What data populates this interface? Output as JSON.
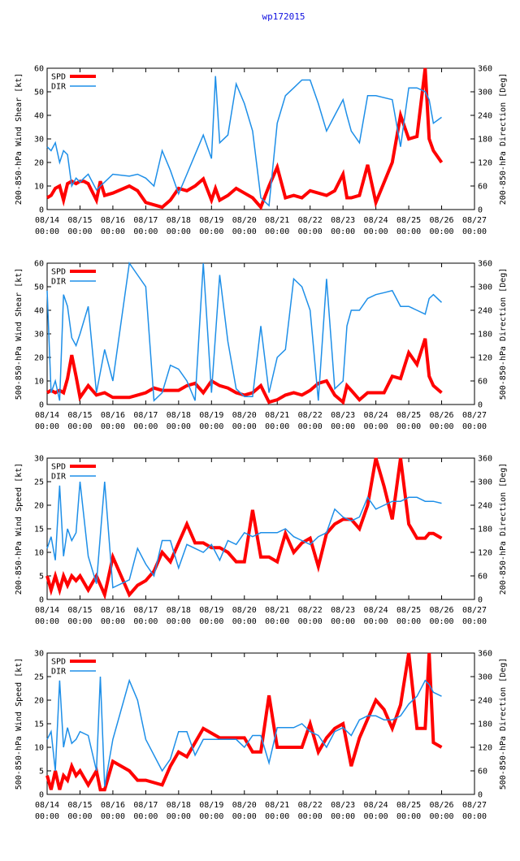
{
  "page_title": "wp172015",
  "x_ticks": [
    [
      "08/14",
      "00:00"
    ],
    [
      "08/15",
      "00:00"
    ],
    [
      "08/16",
      "00:00"
    ],
    [
      "08/17",
      "00:00"
    ],
    [
      "08/18",
      "00:00"
    ],
    [
      "08/19",
      "00:00"
    ],
    [
      "08/20",
      "00:00"
    ],
    [
      "08/21",
      "00:00"
    ],
    [
      "08/22",
      "00:00"
    ],
    [
      "08/23",
      "00:00"
    ],
    [
      "08/24",
      "00:00"
    ],
    [
      "08/25",
      "00:00"
    ],
    [
      "08/26",
      "00:00"
    ],
    [
      "08/27",
      "00:00"
    ]
  ],
  "legend": {
    "spd": "SPD",
    "dir": "DIR"
  },
  "colors": {
    "spd": "#ff0000",
    "dir": "#1e8fe8",
    "axis": "#000000",
    "title": "#1010e0"
  },
  "chart_data": [
    {
      "type": "line",
      "title": "",
      "xlabel": "",
      "ylabel": "200-850-hPa Wind Shear [kt]",
      "y2label": "200-850-hPa Direction [Deg]",
      "xlim": [
        0,
        13
      ],
      "ylim": [
        0,
        60
      ],
      "y2lim": [
        0,
        360
      ],
      "yticks": [
        0,
        10,
        20,
        30,
        40,
        50,
        60
      ],
      "y2ticks": [
        0,
        60,
        120,
        180,
        240,
        300,
        360
      ],
      "series": [
        {
          "name": "SPD",
          "axis": "left",
          "x": [
            0,
            0.12,
            0.25,
            0.38,
            0.5,
            0.62,
            0.75,
            0.88,
            1.0,
            1.12,
            1.25,
            1.5,
            1.62,
            1.75,
            2.0,
            2.5,
            2.75,
            3.0,
            3.25,
            3.5,
            3.75,
            4.0,
            4.25,
            4.5,
            4.75,
            5.0,
            5.12,
            5.25,
            5.5,
            5.75,
            6.0,
            6.25,
            6.5,
            6.75,
            7.0,
            7.25,
            7.5,
            7.75,
            8.0,
            8.25,
            8.5,
            8.75,
            9.0,
            9.12,
            9.25,
            9.5,
            9.75,
            10.0,
            10.5,
            10.75,
            11.0,
            11.25,
            11.5,
            11.62,
            11.75,
            12.0
          ],
          "values": [
            5,
            6,
            9,
            10,
            4,
            11,
            12,
            11,
            12,
            12,
            11,
            4,
            12,
            6,
            7,
            10,
            8,
            3,
            2,
            1,
            4,
            9,
            8,
            10,
            13,
            4,
            9,
            4,
            6,
            9,
            7,
            5,
            1,
            10,
            18,
            5,
            6,
            5,
            8,
            7,
            6,
            8,
            15,
            5,
            5,
            6,
            19,
            3,
            20,
            40,
            30,
            31,
            60,
            30,
            25,
            20
          ]
        },
        {
          "name": "DIR",
          "axis": "right",
          "x": [
            0,
            0.12,
            0.25,
            0.38,
            0.5,
            0.62,
            0.75,
            0.88,
            1.0,
            1.12,
            1.25,
            1.5,
            1.62,
            1.75,
            2.0,
            2.5,
            2.75,
            3.0,
            3.25,
            3.5,
            3.75,
            4.0,
            4.25,
            4.5,
            4.75,
            5.0,
            5.12,
            5.25,
            5.5,
            5.75,
            6.0,
            6.25,
            6.5,
            6.75,
            7.0,
            7.25,
            7.5,
            7.75,
            8.0,
            8.25,
            8.5,
            8.75,
            9.0,
            9.12,
            9.25,
            9.5,
            9.75,
            10.0,
            10.5,
            10.75,
            11.0,
            11.25,
            11.5,
            11.62,
            11.75,
            12.0
          ],
          "values": [
            160,
            150,
            170,
            120,
            150,
            140,
            60,
            80,
            70,
            80,
            90,
            50,
            60,
            70,
            90,
            85,
            90,
            80,
            60,
            150,
            100,
            40,
            90,
            140,
            190,
            130,
            340,
            170,
            190,
            320,
            270,
            200,
            30,
            10,
            220,
            290,
            310,
            330,
            330,
            270,
            200,
            240,
            280,
            240,
            200,
            170,
            290,
            290,
            280,
            160,
            310,
            310,
            300,
            280,
            220,
            235
          ]
        }
      ]
    },
    {
      "type": "line",
      "title": "",
      "xlabel": "",
      "ylabel": "500-850-hPa Wind Shear [kt]",
      "y2label": "500-850-hPa Direction [Deg]",
      "xlim": [
        0,
        13
      ],
      "ylim": [
        0,
        60
      ],
      "y2lim": [
        0,
        360
      ],
      "yticks": [
        0,
        10,
        20,
        30,
        40,
        50,
        60
      ],
      "y2ticks": [
        0,
        60,
        120,
        180,
        240,
        300,
        360
      ],
      "series": [
        {
          "name": "SPD",
          "axis": "left",
          "x": [
            0,
            0.12,
            0.25,
            0.38,
            0.5,
            0.62,
            0.75,
            0.88,
            1.0,
            1.25,
            1.5,
            1.75,
            2.0,
            2.5,
            2.75,
            3.0,
            3.25,
            3.5,
            3.75,
            4.0,
            4.25,
            4.5,
            4.75,
            5.0,
            5.25,
            5.5,
            5.75,
            6.0,
            6.25,
            6.5,
            6.75,
            7.0,
            7.25,
            7.5,
            7.75,
            8.0,
            8.25,
            8.5,
            8.75,
            9.0,
            9.12,
            9.25,
            9.5,
            9.75,
            10.0,
            10.25,
            10.5,
            10.75,
            11.0,
            11.25,
            11.5,
            11.62,
            11.75,
            12.0
          ],
          "values": [
            5,
            6,
            5,
            6,
            5,
            11,
            21,
            12,
            3,
            8,
            4,
            5,
            3,
            3,
            4,
            5,
            7,
            6,
            6,
            6,
            8,
            9,
            5,
            10,
            8,
            7,
            5,
            4,
            5,
            8,
            1,
            2,
            4,
            5,
            4,
            6,
            9,
            10,
            4,
            1,
            8,
            6,
            2,
            5,
            5,
            5,
            12,
            11,
            22,
            17,
            28,
            12,
            8,
            5
          ]
        },
        {
          "name": "DIR",
          "axis": "right",
          "x": [
            0,
            0.12,
            0.25,
            0.38,
            0.5,
            0.62,
            0.75,
            0.88,
            1.0,
            1.25,
            1.5,
            1.75,
            2.0,
            2.5,
            2.75,
            3.0,
            3.25,
            3.5,
            3.75,
            4.0,
            4.25,
            4.5,
            4.75,
            5.0,
            5.25,
            5.5,
            5.75,
            6.0,
            6.25,
            6.5,
            6.75,
            7.0,
            7.25,
            7.5,
            7.75,
            8.0,
            8.25,
            8.5,
            8.75,
            9.0,
            9.12,
            9.25,
            9.5,
            9.75,
            10.0,
            10.25,
            10.5,
            10.75,
            11.0,
            11.25,
            11.5,
            11.62,
            11.75,
            12.0
          ],
          "values": [
            290,
            30,
            60,
            10,
            280,
            250,
            170,
            150,
            180,
            250,
            30,
            140,
            60,
            360,
            330,
            300,
            10,
            30,
            100,
            90,
            60,
            10,
            360,
            30,
            330,
            160,
            40,
            20,
            20,
            200,
            30,
            120,
            140,
            320,
            300,
            240,
            10,
            320,
            40,
            60,
            200,
            240,
            240,
            270,
            280,
            285,
            290,
            250,
            250,
            240,
            230,
            270,
            280,
            260
          ]
        }
      ]
    },
    {
      "type": "line",
      "title": "",
      "xlabel": "",
      "ylabel": "200-850-hPa Wind Speed [kt]",
      "y2label": "200-850-hPa Direction [Deg]",
      "xlim": [
        0,
        13
      ],
      "ylim": [
        0,
        30
      ],
      "y2lim": [
        0,
        360
      ],
      "yticks": [
        0,
        5,
        10,
        15,
        20,
        25,
        30
      ],
      "y2ticks": [
        0,
        60,
        120,
        180,
        240,
        300,
        360
      ],
      "series": [
        {
          "name": "SPD",
          "axis": "left",
          "x": [
            0,
            0.12,
            0.25,
            0.38,
            0.5,
            0.62,
            0.75,
            0.88,
            1.0,
            1.25,
            1.5,
            1.75,
            2.0,
            2.5,
            2.75,
            3.0,
            3.25,
            3.5,
            3.75,
            4.0,
            4.25,
            4.5,
            4.75,
            5.0,
            5.25,
            5.5,
            5.75,
            6.0,
            6.25,
            6.5,
            6.75,
            7.0,
            7.25,
            7.5,
            7.75,
            8.0,
            8.25,
            8.5,
            8.75,
            9.0,
            9.25,
            9.5,
            9.75,
            10.0,
            10.25,
            10.5,
            10.75,
            11.0,
            11.25,
            11.5,
            11.62,
            11.75,
            12.0
          ],
          "values": [
            5,
            2,
            5,
            2,
            5,
            3,
            5,
            4,
            5,
            2,
            5,
            1,
            9,
            1,
            3,
            4,
            6,
            10,
            8,
            12,
            16,
            12,
            12,
            11,
            11,
            10,
            8,
            8,
            19,
            9,
            9,
            8,
            14,
            10,
            12,
            13,
            7,
            14,
            16,
            17,
            17,
            15,
            20,
            30,
            24,
            17,
            30,
            16,
            13,
            13,
            14,
            14,
            13
          ]
        },
        {
          "name": "DIR",
          "axis": "right",
          "x": [
            0,
            0.12,
            0.25,
            0.38,
            0.5,
            0.62,
            0.75,
            0.88,
            1.0,
            1.25,
            1.5,
            1.75,
            2.0,
            2.5,
            2.75,
            3.0,
            3.25,
            3.5,
            3.75,
            4.0,
            4.25,
            4.5,
            4.75,
            5.0,
            5.25,
            5.5,
            5.75,
            6.0,
            6.25,
            6.5,
            6.75,
            7.0,
            7.25,
            7.5,
            7.75,
            8.0,
            8.25,
            8.5,
            8.75,
            9.0,
            9.25,
            9.5,
            9.75,
            10.0,
            10.25,
            10.5,
            10.75,
            11.0,
            11.25,
            11.5,
            11.62,
            11.75,
            12.0
          ],
          "values": [
            130,
            160,
            100,
            290,
            110,
            180,
            150,
            170,
            300,
            110,
            40,
            300,
            30,
            50,
            130,
            90,
            60,
            150,
            150,
            80,
            140,
            130,
            120,
            140,
            100,
            150,
            140,
            170,
            160,
            170,
            170,
            170,
            180,
            160,
            150,
            140,
            160,
            170,
            230,
            210,
            200,
            210,
            260,
            230,
            240,
            250,
            250,
            260,
            260,
            250,
            250,
            250,
            245
          ]
        }
      ]
    },
    {
      "type": "line",
      "title": "",
      "xlabel": "",
      "ylabel": "500-850-hPa Wind Speed [kt]",
      "y2label": "500-850-hPa Direction [Deg]",
      "xlim": [
        0,
        13
      ],
      "ylim": [
        0,
        30
      ],
      "y2lim": [
        0,
        360
      ],
      "yticks": [
        0,
        5,
        10,
        15,
        20,
        25,
        30
      ],
      "y2ticks": [
        0,
        60,
        120,
        180,
        240,
        300,
        360
      ],
      "series": [
        {
          "name": "SPD",
          "axis": "left",
          "x": [
            0,
            0.12,
            0.25,
            0.38,
            0.5,
            0.62,
            0.75,
            0.88,
            1.0,
            1.25,
            1.5,
            1.62,
            1.75,
            2.0,
            2.5,
            2.75,
            3.0,
            3.5,
            3.75,
            4.0,
            4.25,
            4.5,
            4.75,
            5.0,
            5.25,
            5.5,
            5.75,
            6.0,
            6.25,
            6.5,
            6.75,
            7.0,
            7.25,
            7.5,
            7.75,
            8.0,
            8.25,
            8.5,
            8.75,
            9.0,
            9.25,
            9.5,
            9.75,
            10.0,
            10.25,
            10.5,
            10.75,
            11.0,
            11.25,
            11.5,
            11.62,
            11.75,
            12.0
          ],
          "values": [
            4,
            1,
            5,
            1,
            4,
            3,
            6,
            4,
            5,
            2,
            5,
            1,
            1,
            7,
            5,
            3,
            3,
            2,
            6,
            9,
            8,
            11,
            14,
            13,
            12,
            12,
            12,
            12,
            9,
            9,
            21,
            10,
            10,
            10,
            10,
            15,
            9,
            12,
            14,
            15,
            6,
            12,
            16,
            20,
            18,
            14,
            19,
            30,
            14,
            14,
            30,
            11,
            10
          ]
        },
        {
          "name": "DIR",
          "axis": "right",
          "x": [
            0,
            0.12,
            0.25,
            0.38,
            0.5,
            0.62,
            0.75,
            0.88,
            1.0,
            1.25,
            1.5,
            1.62,
            1.75,
            2.0,
            2.5,
            2.75,
            3.0,
            3.5,
            3.75,
            4.0,
            4.25,
            4.5,
            4.75,
            5.0,
            5.25,
            5.5,
            5.75,
            6.0,
            6.25,
            6.5,
            6.75,
            7.0,
            7.25,
            7.5,
            7.75,
            8.0,
            8.25,
            8.5,
            8.75,
            9.0,
            9.25,
            9.5,
            9.75,
            10.0,
            10.25,
            10.5,
            10.75,
            11.0,
            11.25,
            11.5,
            11.62,
            11.75,
            12.0
          ],
          "values": [
            140,
            160,
            60,
            290,
            120,
            170,
            130,
            140,
            160,
            150,
            60,
            300,
            20,
            140,
            290,
            240,
            140,
            60,
            90,
            160,
            160,
            100,
            140,
            140,
            140,
            140,
            140,
            120,
            150,
            150,
            80,
            170,
            170,
            170,
            180,
            160,
            150,
            120,
            160,
            170,
            150,
            190,
            200,
            200,
            190,
            190,
            200,
            230,
            250,
            290,
            280,
            260,
            250
          ]
        }
      ]
    }
  ]
}
